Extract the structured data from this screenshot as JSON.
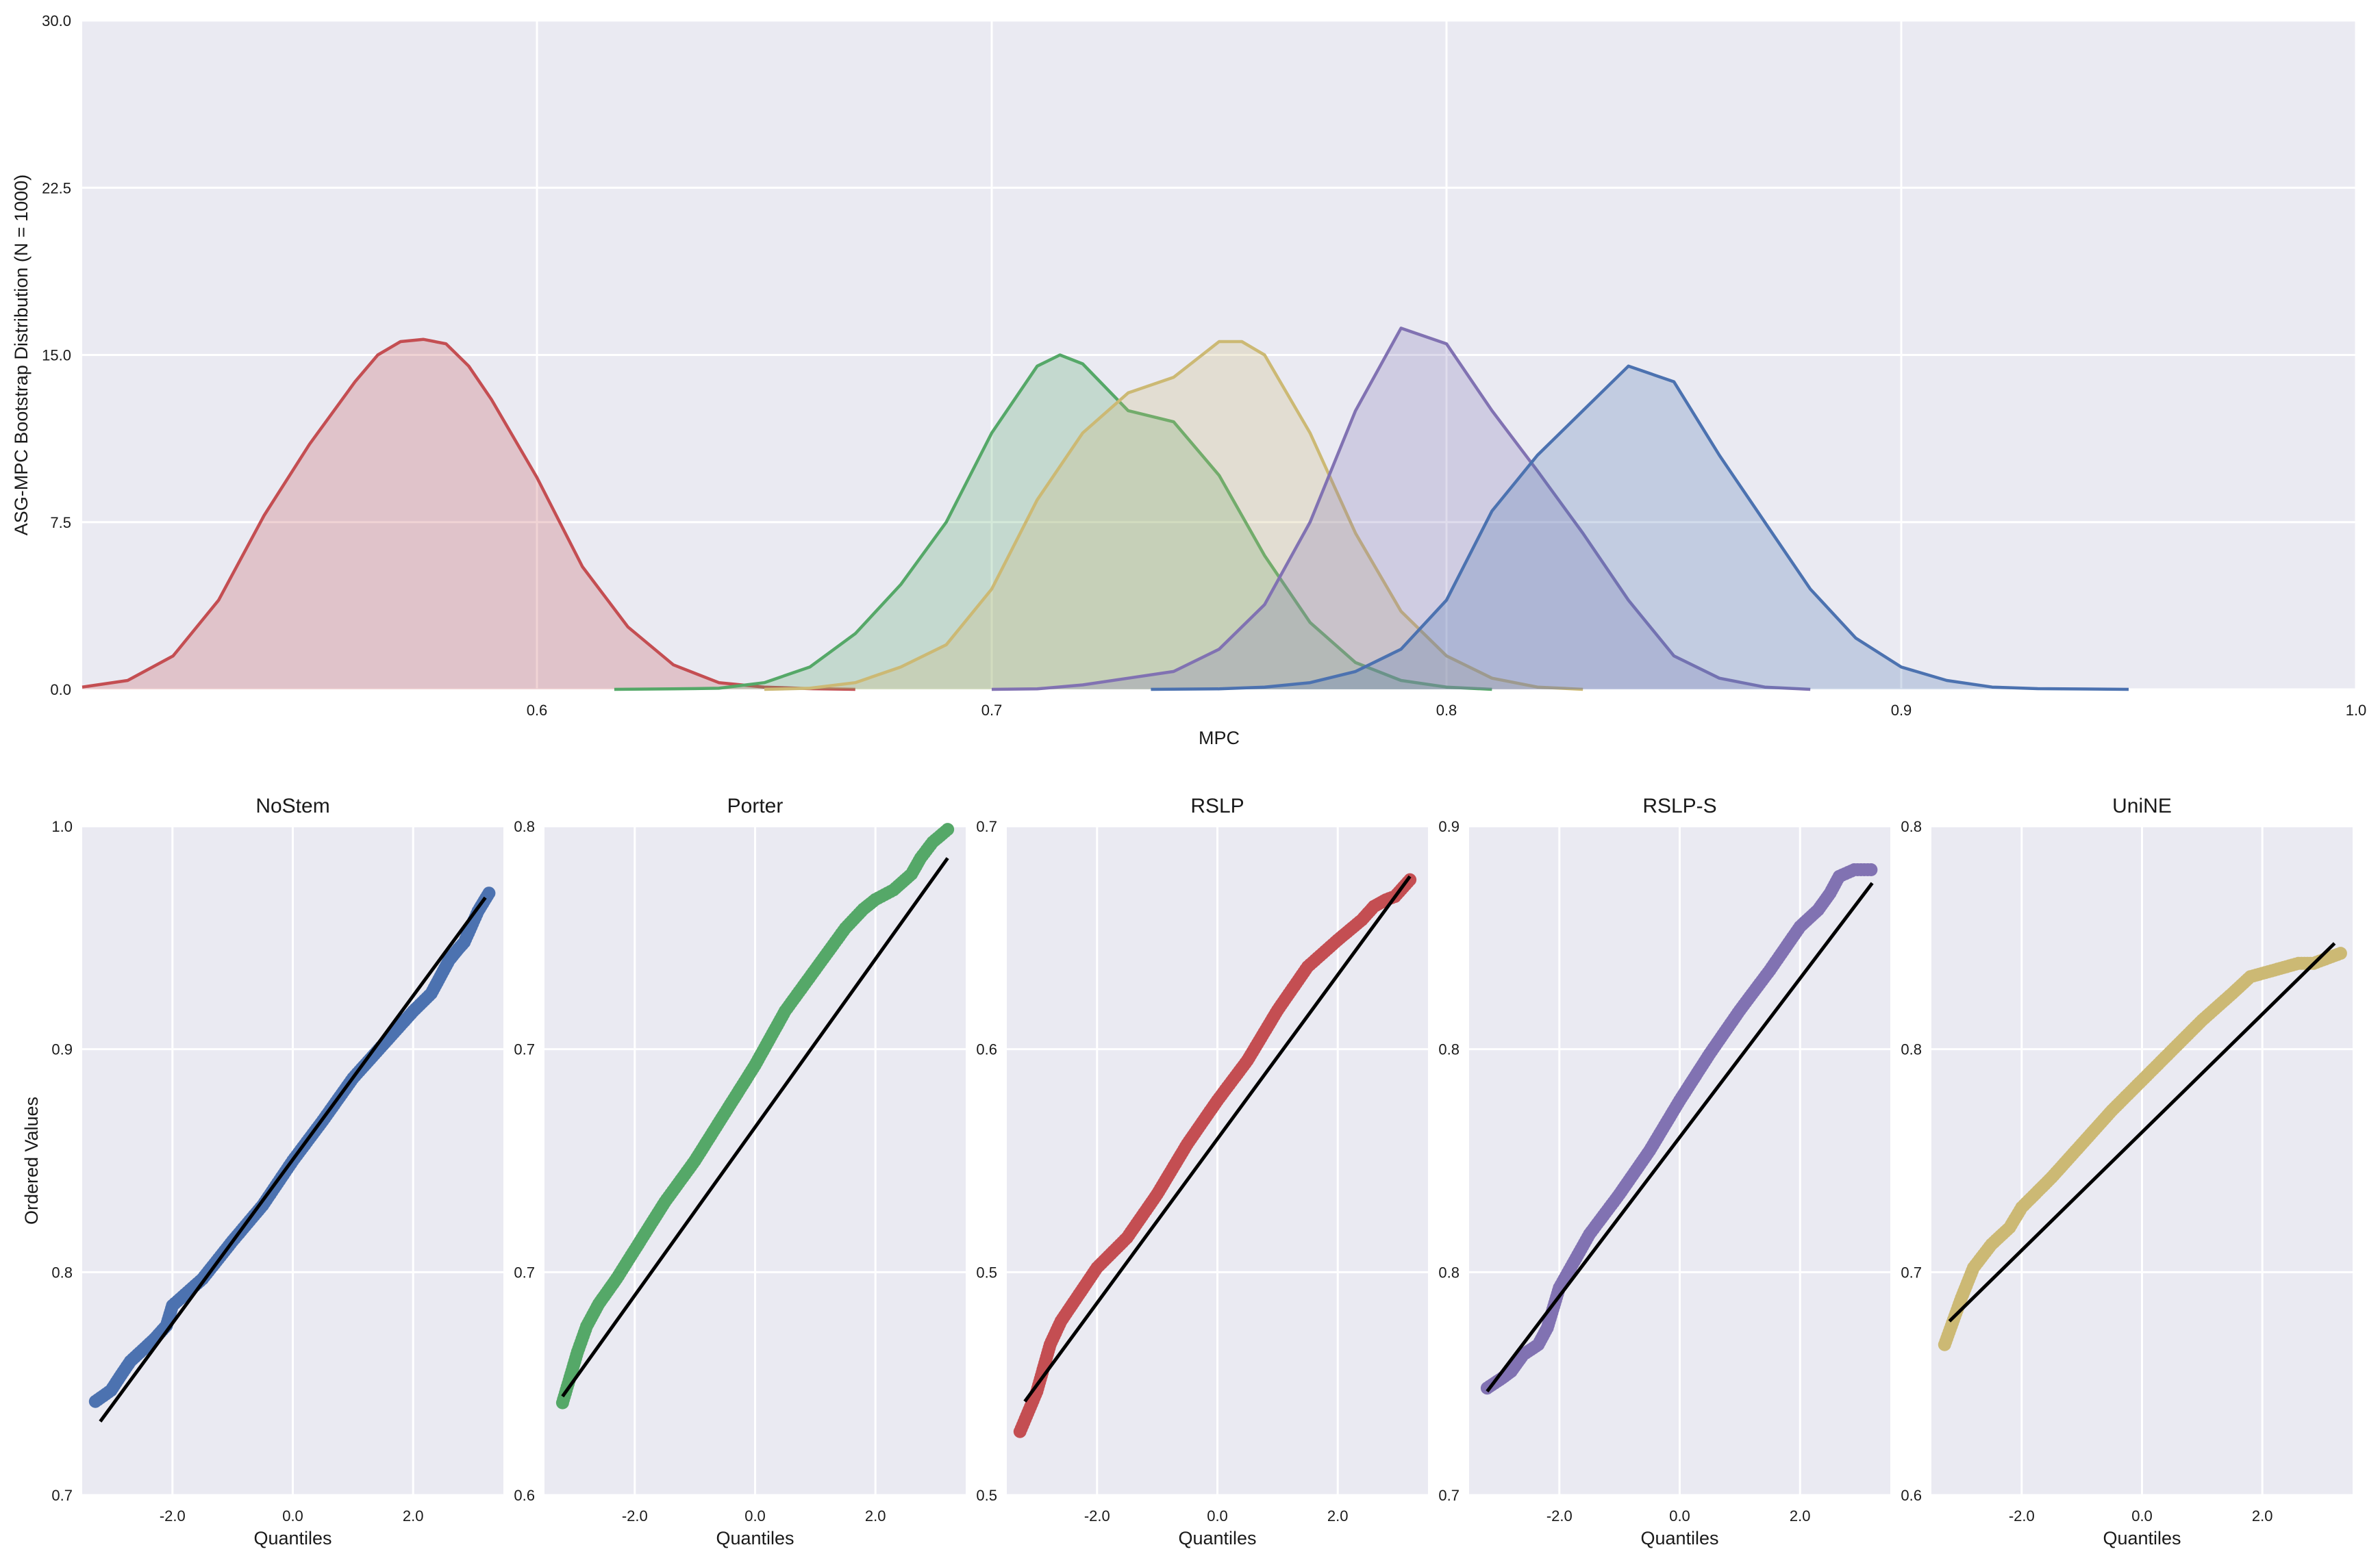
{
  "chart_data": [
    {
      "type": "area",
      "xlabel": "MPC",
      "ylabel": "ASG-MPC Bootstrap Distribution (N = 1000)",
      "xlim": [
        0.5,
        1.0
      ],
      "ylim": [
        0,
        30
      ],
      "xticks": [
        "0.6",
        "0.7",
        "0.8",
        "0.9",
        "1.0"
      ],
      "yticks": [
        "0.0",
        "7.5",
        "15.0",
        "22.5",
        "30.0"
      ],
      "grid": true,
      "series": [
        {
          "color": "#c44e52",
          "x": [
            0.5,
            0.51,
            0.52,
            0.53,
            0.54,
            0.55,
            0.56,
            0.565,
            0.57,
            0.575,
            0.58,
            0.585,
            0.59,
            0.6,
            0.61,
            0.62,
            0.63,
            0.64,
            0.65,
            0.66,
            0.67
          ],
          "y": [
            0.1,
            0.4,
            1.5,
            4.0,
            7.8,
            11.0,
            13.8,
            15.0,
            15.6,
            15.7,
            15.5,
            14.5,
            13.0,
            9.5,
            5.5,
            2.8,
            1.1,
            0.3,
            0.1,
            0.03,
            0.0
          ]
        },
        {
          "color": "#55a868",
          "x": [
            0.617,
            0.63,
            0.64,
            0.65,
            0.66,
            0.67,
            0.68,
            0.69,
            0.7,
            0.71,
            0.715,
            0.72,
            0.73,
            0.74,
            0.75,
            0.76,
            0.77,
            0.78,
            0.79,
            0.8,
            0.81
          ],
          "y": [
            0.0,
            0.02,
            0.05,
            0.3,
            1.0,
            2.5,
            4.7,
            7.5,
            11.5,
            14.5,
            15.0,
            14.6,
            12.5,
            12.0,
            9.6,
            6.0,
            3.0,
            1.2,
            0.4,
            0.1,
            0.0
          ]
        },
        {
          "color": "#ccb974",
          "x": [
            0.65,
            0.66,
            0.67,
            0.68,
            0.69,
            0.7,
            0.71,
            0.72,
            0.73,
            0.74,
            0.75,
            0.755,
            0.76,
            0.77,
            0.78,
            0.79,
            0.8,
            0.81,
            0.82,
            0.83
          ],
          "y": [
            0.0,
            0.05,
            0.3,
            1.0,
            2.0,
            4.5,
            8.5,
            11.5,
            13.3,
            14.0,
            15.6,
            15.6,
            15.0,
            11.5,
            7.0,
            3.5,
            1.5,
            0.5,
            0.1,
            0.0
          ]
        },
        {
          "color": "#8172b2",
          "x": [
            0.7,
            0.71,
            0.72,
            0.73,
            0.74,
            0.75,
            0.76,
            0.77,
            0.78,
            0.79,
            0.8,
            0.81,
            0.82,
            0.83,
            0.84,
            0.85,
            0.86,
            0.87,
            0.88
          ],
          "y": [
            0.0,
            0.02,
            0.2,
            0.5,
            0.8,
            1.8,
            3.8,
            7.5,
            12.5,
            16.2,
            15.5,
            12.5,
            9.8,
            7.0,
            4.0,
            1.5,
            0.5,
            0.1,
            0.0
          ]
        },
        {
          "color": "#4c72b0",
          "x": [
            0.735,
            0.75,
            0.76,
            0.77,
            0.78,
            0.79,
            0.8,
            0.81,
            0.82,
            0.83,
            0.84,
            0.85,
            0.86,
            0.87,
            0.88,
            0.89,
            0.9,
            0.91,
            0.92,
            0.93,
            0.95
          ],
          "y": [
            0.0,
            0.02,
            0.1,
            0.3,
            0.8,
            1.8,
            4.0,
            8.0,
            10.5,
            12.5,
            14.5,
            13.8,
            10.5,
            7.5,
            4.5,
            2.3,
            1.0,
            0.4,
            0.1,
            0.03,
            0.0
          ]
        }
      ]
    },
    {
      "type": "scatter",
      "title": "NoStem",
      "xlabel": "Quantiles",
      "ylabel": "Ordered Values",
      "color": "#4c72b0",
      "xlim": [
        -3.5,
        3.5
      ],
      "ylim": [
        0.7,
        1.0
      ],
      "xticks": [
        "-2.0",
        "0.0",
        "2.0"
      ],
      "yticks": [
        "0.7",
        "0.8",
        "0.9",
        "1.0"
      ],
      "fit_line": [
        [
          -3.2,
          0.733
        ],
        [
          3.2,
          0.968
        ]
      ],
      "points": [
        [
          -3.28,
          0.742
        ],
        [
          -3.02,
          0.747
        ],
        [
          -2.85,
          0.754
        ],
        [
          -2.7,
          0.76
        ],
        [
          -2.5,
          0.765
        ],
        [
          -2.3,
          0.77
        ],
        [
          -2.1,
          0.776
        ],
        [
          -2.0,
          0.785
        ],
        [
          -1.5,
          0.797
        ],
        [
          -1.0,
          0.814
        ],
        [
          -0.5,
          0.83
        ],
        [
          0.0,
          0.85
        ],
        [
          0.5,
          0.868
        ],
        [
          1.0,
          0.887
        ],
        [
          1.5,
          0.902
        ],
        [
          2.0,
          0.917
        ],
        [
          2.3,
          0.925
        ],
        [
          2.6,
          0.94
        ],
        [
          2.75,
          0.945
        ],
        [
          2.85,
          0.948
        ],
        [
          3.08,
          0.962
        ],
        [
          3.26,
          0.97
        ]
      ]
    },
    {
      "type": "scatter",
      "title": "Porter",
      "xlabel": "Quantiles",
      "ylabel": "",
      "color": "#55a868",
      "xlim": [
        -3.5,
        3.5
      ],
      "ylim": [
        0.6,
        0.81
      ],
      "xticks": [
        "-2.0",
        "0.0",
        "2.0"
      ],
      "yticks": [
        "0.6",
        "0.7",
        "0.7",
        "0.8"
      ],
      "fit_line": [
        [
          -3.2,
          0.631
        ],
        [
          3.2,
          0.8
        ]
      ],
      "points": [
        [
          -3.2,
          0.629
        ],
        [
          -2.95,
          0.645
        ],
        [
          -2.8,
          0.653
        ],
        [
          -2.6,
          0.66
        ],
        [
          -2.3,
          0.668
        ],
        [
          -2.0,
          0.677
        ],
        [
          -1.5,
          0.692
        ],
        [
          -1.0,
          0.705
        ],
        [
          -0.5,
          0.72
        ],
        [
          0.0,
          0.735
        ],
        [
          0.5,
          0.752
        ],
        [
          1.0,
          0.765
        ],
        [
          1.5,
          0.778
        ],
        [
          1.8,
          0.784
        ],
        [
          2.0,
          0.787
        ],
        [
          2.3,
          0.79
        ],
        [
          2.6,
          0.795
        ],
        [
          2.75,
          0.8
        ],
        [
          2.95,
          0.805
        ],
        [
          3.2,
          0.809
        ]
      ]
    },
    {
      "type": "scatter",
      "title": "RSLP",
      "xlabel": "Quantiles",
      "ylabel": "",
      "color": "#c44e52",
      "xlim": [
        -3.5,
        3.5
      ],
      "ylim": [
        0.5,
        0.7
      ],
      "xticks": [
        "-2.0",
        "0.0",
        "2.0"
      ],
      "yticks": [
        "0.5",
        "0.5",
        "0.6",
        "0.7"
      ],
      "fit_line": [
        [
          -3.2,
          0.528
        ],
        [
          3.2,
          0.685
        ]
      ],
      "points": [
        [
          -3.28,
          0.519
        ],
        [
          -3.0,
          0.531
        ],
        [
          -2.78,
          0.545
        ],
        [
          -2.6,
          0.552
        ],
        [
          -2.3,
          0.56
        ],
        [
          -2.0,
          0.568
        ],
        [
          -1.5,
          0.577
        ],
        [
          -1.0,
          0.59
        ],
        [
          -0.5,
          0.605
        ],
        [
          0.0,
          0.618
        ],
        [
          0.5,
          0.63
        ],
        [
          1.0,
          0.645
        ],
        [
          1.5,
          0.658
        ],
        [
          2.0,
          0.666
        ],
        [
          2.4,
          0.672
        ],
        [
          2.6,
          0.676
        ],
        [
          2.8,
          0.678
        ],
        [
          2.95,
          0.679
        ],
        [
          3.2,
          0.684
        ]
      ]
    },
    {
      "type": "scatter",
      "title": "RSLP-S",
      "xlabel": "Quantiles",
      "ylabel": "",
      "color": "#8172b2",
      "xlim": [
        -3.5,
        3.5
      ],
      "ylim": [
        0.7,
        0.9
      ],
      "xticks": [
        "-2.0",
        "0.0",
        "2.0"
      ],
      "yticks": [
        "0.7",
        "0.8",
        "0.8",
        "0.9"
      ],
      "fit_line": [
        [
          -3.2,
          0.731
        ],
        [
          3.2,
          0.883
        ]
      ],
      "points": [
        [
          -3.2,
          0.732
        ],
        [
          -2.95,
          0.735
        ],
        [
          -2.8,
          0.737
        ],
        [
          -2.6,
          0.742
        ],
        [
          -2.35,
          0.745
        ],
        [
          -2.2,
          0.75
        ],
        [
          -2.0,
          0.762
        ],
        [
          -1.5,
          0.778
        ],
        [
          -1.0,
          0.79
        ],
        [
          -0.5,
          0.803
        ],
        [
          0.0,
          0.818
        ],
        [
          0.5,
          0.832
        ],
        [
          1.0,
          0.845
        ],
        [
          1.5,
          0.857
        ],
        [
          2.0,
          0.87
        ],
        [
          2.3,
          0.875
        ],
        [
          2.5,
          0.88
        ],
        [
          2.65,
          0.885
        ],
        [
          2.9,
          0.887
        ],
        [
          3.18,
          0.887
        ]
      ]
    },
    {
      "type": "scatter",
      "title": "UniNE",
      "xlabel": "Quantiles",
      "ylabel": "",
      "color": "#ccb974",
      "xlim": [
        -3.5,
        3.5
      ],
      "ylim": [
        0.6,
        0.8
      ],
      "xticks": [
        "-2.0",
        "0.0",
        "2.0"
      ],
      "yticks": [
        "0.6",
        "0.7",
        "0.8",
        "0.8"
      ],
      "fit_line": [
        [
          -3.2,
          0.652
        ],
        [
          3.2,
          0.765
        ]
      ],
      "points": [
        [
          -3.28,
          0.645
        ],
        [
          -3.0,
          0.659
        ],
        [
          -2.8,
          0.668
        ],
        [
          -2.5,
          0.675
        ],
        [
          -2.2,
          0.68
        ],
        [
          -2.0,
          0.686
        ],
        [
          -1.5,
          0.695
        ],
        [
          -1.0,
          0.705
        ],
        [
          -0.5,
          0.715
        ],
        [
          0.0,
          0.724
        ],
        [
          0.5,
          0.733
        ],
        [
          1.0,
          0.742
        ],
        [
          1.5,
          0.75
        ],
        [
          1.8,
          0.755
        ],
        [
          2.2,
          0.757
        ],
        [
          2.6,
          0.759
        ],
        [
          2.85,
          0.759
        ],
        [
          3.3,
          0.762
        ]
      ]
    }
  ]
}
